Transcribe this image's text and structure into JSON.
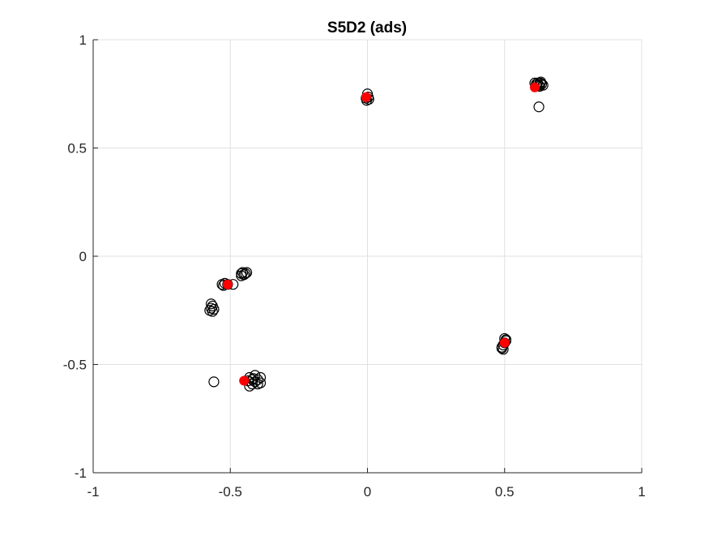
{
  "chart_data": {
    "type": "scatter",
    "title": "S5D2 (ads)",
    "xlabel": "",
    "ylabel": "",
    "xlim": [
      -1,
      1
    ],
    "ylim": [
      -1,
      1
    ],
    "xticks": [
      -1,
      -0.5,
      0,
      0.5,
      1
    ],
    "yticks": [
      -1,
      -0.5,
      0,
      0.5,
      1
    ],
    "xtick_labels": [
      "-1",
      "-0.5",
      "0",
      "0.5",
      "1"
    ],
    "ytick_labels": [
      "-1",
      "-0.5",
      "0",
      "0.5",
      "1"
    ],
    "grid": true,
    "colors": {
      "points": "#000000",
      "centroids": "#ff0000",
      "grid": "#e0e0e0",
      "axis": "#262626"
    },
    "series": [
      {
        "marker": "open-circle",
        "points": [
          [
            0.0,
            0.75
          ],
          [
            -0.005,
            0.73
          ],
          [
            0.005,
            0.725
          ],
          [
            -0.003,
            0.72
          ],
          [
            0.003,
            0.735
          ],
          [
            0.61,
            0.8
          ],
          [
            0.615,
            0.795
          ],
          [
            0.62,
            0.8
          ],
          [
            0.625,
            0.79
          ],
          [
            0.63,
            0.8
          ],
          [
            0.635,
            0.795
          ],
          [
            0.64,
            0.79
          ],
          [
            0.632,
            0.805
          ],
          [
            0.618,
            0.79
          ],
          [
            0.628,
            0.785
          ],
          [
            0.625,
            0.69
          ],
          [
            -0.46,
            -0.08
          ],
          [
            -0.455,
            -0.075
          ],
          [
            -0.45,
            -0.085
          ],
          [
            -0.445,
            -0.08
          ],
          [
            -0.44,
            -0.075
          ],
          [
            -0.46,
            -0.09
          ],
          [
            -0.53,
            -0.13
          ],
          [
            -0.52,
            -0.125
          ],
          [
            -0.525,
            -0.135
          ],
          [
            -0.51,
            -0.13
          ],
          [
            -0.49,
            -0.13
          ],
          [
            -0.57,
            -0.22
          ],
          [
            -0.565,
            -0.23
          ],
          [
            -0.57,
            -0.24
          ],
          [
            -0.575,
            -0.25
          ],
          [
            -0.565,
            -0.255
          ],
          [
            -0.56,
            -0.245
          ],
          [
            0.49,
            -0.42
          ],
          [
            0.495,
            -0.41
          ],
          [
            0.5,
            -0.4
          ],
          [
            0.505,
            -0.39
          ],
          [
            0.5,
            -0.38
          ],
          [
            0.49,
            -0.425
          ],
          [
            0.495,
            -0.43
          ],
          [
            0.505,
            -0.385
          ],
          [
            -0.43,
            -0.56
          ],
          [
            -0.42,
            -0.57
          ],
          [
            -0.41,
            -0.58
          ],
          [
            -0.4,
            -0.57
          ],
          [
            -0.39,
            -0.56
          ],
          [
            -0.42,
            -0.59
          ],
          [
            -0.43,
            -0.6
          ],
          [
            -0.4,
            -0.59
          ],
          [
            -0.41,
            -0.55
          ],
          [
            -0.435,
            -0.575
          ],
          [
            -0.39,
            -0.585
          ],
          [
            -0.415,
            -0.565
          ],
          [
            -0.56,
            -0.58
          ]
        ]
      },
      {
        "marker": "filled-circle",
        "color": "#ff0000",
        "points": [
          [
            -0.005,
            0.735
          ],
          [
            0.61,
            0.78
          ],
          [
            -0.51,
            -0.13
          ],
          [
            0.5,
            -0.4
          ],
          [
            -0.45,
            -0.575
          ]
        ]
      }
    ]
  }
}
